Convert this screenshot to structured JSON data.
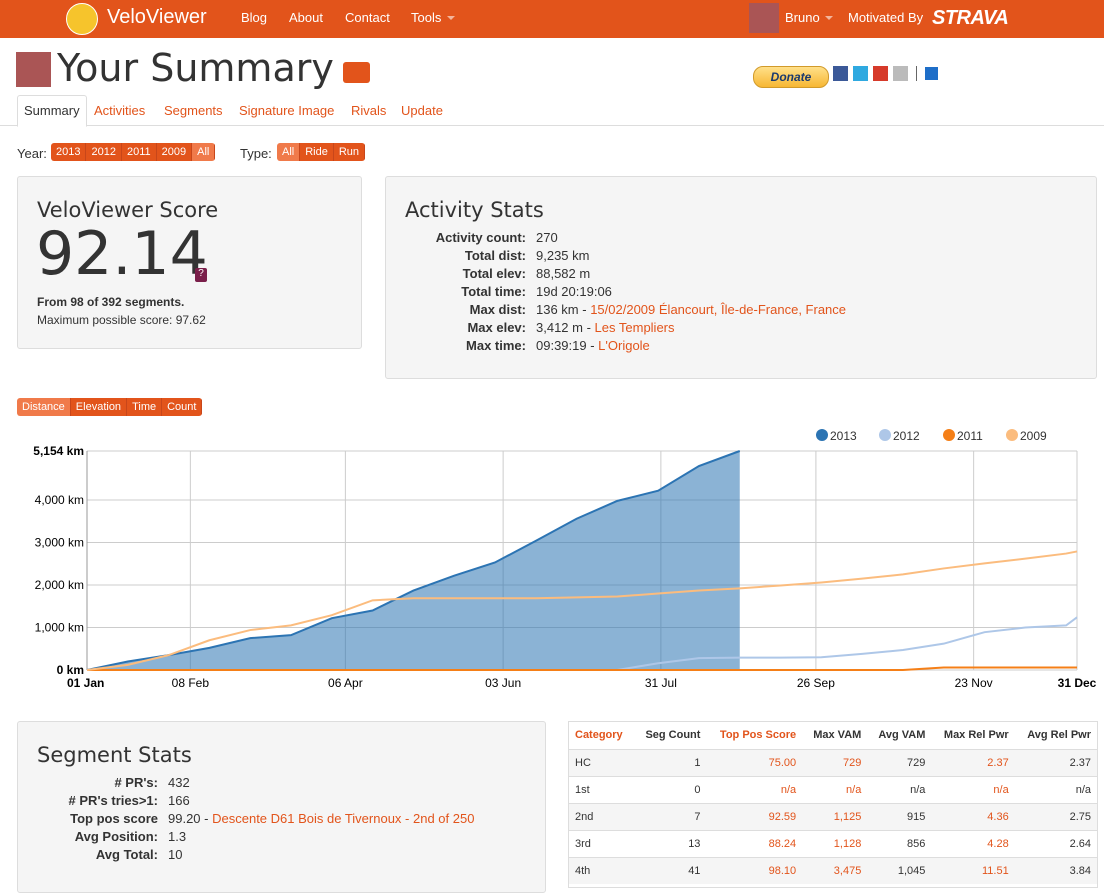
{
  "nav": {
    "logo": "VeloViewer",
    "links": [
      "Blog",
      "About",
      "Contact",
      "Tools"
    ],
    "user": "Bruno",
    "motivated": "Motivated By",
    "strava": "STRAVA"
  },
  "header": {
    "title": "Your Summary",
    "donate": "Donate"
  },
  "tabs": [
    "Summary",
    "Activities",
    "Segments",
    "Signature Image",
    "Rivals",
    "Update"
  ],
  "filters": {
    "year_label": "Year:",
    "years": [
      "2013",
      "2012",
      "2011",
      "2009",
      "All"
    ],
    "type_label": "Type:",
    "types": [
      "All",
      "Ride",
      "Run"
    ]
  },
  "score": {
    "title": "VeloViewer Score",
    "value": "92.14",
    "help": "?",
    "from": "From 98 of 392 segments.",
    "max": "Maximum possible score: 97.62"
  },
  "activity_stats": {
    "title": "Activity Stats",
    "rows": [
      {
        "label": "Activity count:",
        "value": "270"
      },
      {
        "label": "Total dist:",
        "value": "9,235 km"
      },
      {
        "label": "Total elev:",
        "value": "88,582 m"
      },
      {
        "label": "Total time:",
        "value": "19d 20:19:06"
      },
      {
        "label": "Max dist:",
        "value": "136 km -",
        "link": "15/02/2009 Élancourt, Île-de-France, France"
      },
      {
        "label": "Max elev:",
        "value": "3,412 m -",
        "link": "Les Templiers"
      },
      {
        "label": "Max time:",
        "value": "09:39:19 -",
        "link": "L'Origole"
      }
    ]
  },
  "chart_buttons": [
    "Distance",
    "Elevation",
    "Time",
    "Count"
  ],
  "chart_data": {
    "type": "line",
    "x": [
      0,
      15,
      30,
      45,
      60,
      75,
      90,
      105,
      120,
      135,
      150,
      165,
      180,
      195,
      210,
      225,
      240,
      255,
      270,
      285,
      300,
      315,
      330,
      345,
      360,
      364
    ],
    "xlim": [
      0,
      364
    ],
    "xticks": [
      {
        "value": 0,
        "label": "01 Jan"
      },
      {
        "value": 38,
        "label": "08 Feb"
      },
      {
        "value": 95,
        "label": "06 Apr"
      },
      {
        "value": 153,
        "label": "03 Jun"
      },
      {
        "value": 211,
        "label": "31 Jul"
      },
      {
        "value": 268,
        "label": "26 Sep"
      },
      {
        "value": 326,
        "label": "23 Nov"
      },
      {
        "value": 364,
        "label": "31 Dec"
      }
    ],
    "ylim": [
      0,
      5154
    ],
    "yticks": [
      {
        "value": 0,
        "label": "0 km"
      },
      {
        "value": 1000,
        "label": "1,000 km"
      },
      {
        "value": 2000,
        "label": "2,000 km"
      },
      {
        "value": 3000,
        "label": "3,000 km"
      },
      {
        "value": 4000,
        "label": "4,000 km"
      },
      {
        "value": 5154,
        "label": "5,154 km"
      }
    ],
    "grid": true,
    "legend": "top-right",
    "series": [
      {
        "name": "2013",
        "color": "#2c74b3",
        "area": true,
        "values": [
          0,
          200,
          350,
          520,
          750,
          820,
          1220,
          1400,
          1870,
          2220,
          2530,
          3040,
          3560,
          3980,
          4220,
          4800,
          5154,
          null,
          null,
          null,
          null,
          null,
          null,
          null,
          null,
          null
        ]
      },
      {
        "name": "2012",
        "color": "#aec7e8",
        "area": false,
        "values": [
          null,
          null,
          null,
          null,
          null,
          null,
          null,
          null,
          null,
          null,
          null,
          null,
          null,
          0,
          160,
          280,
          290,
          290,
          300,
          380,
          470,
          620,
          890,
          1000,
          1050,
          1240
        ]
      },
      {
        "name": "2011",
        "color": "#f57f17",
        "area": false,
        "values": [
          0,
          0,
          0,
          0,
          0,
          0,
          0,
          0,
          0,
          0,
          0,
          0,
          0,
          0,
          0,
          0,
          0,
          0,
          0,
          0,
          0,
          60,
          60,
          60,
          60,
          60
        ]
      },
      {
        "name": "2009",
        "color": "#fbbc7e",
        "area": false,
        "values": [
          0,
          120,
          350,
          700,
          940,
          1050,
          1290,
          1640,
          1690,
          1690,
          1690,
          1690,
          1710,
          1730,
          1800,
          1870,
          1920,
          1990,
          2060,
          2150,
          2250,
          2390,
          2510,
          2620,
          2740,
          2790
        ]
      }
    ]
  },
  "segment_stats": {
    "title": "Segment Stats",
    "rows": [
      {
        "label": "# PR's:",
        "value": "432"
      },
      {
        "label": "# PR's tries>1:",
        "value": "166"
      },
      {
        "label": "Top pos score",
        "value": "99.20 -",
        "link": "Descente D61 Bois de Tivernoux - 2nd of 250"
      },
      {
        "label": "Avg Position:",
        "value": "1.3"
      },
      {
        "label": "Avg Total:",
        "value": "10"
      }
    ]
  },
  "table": {
    "headers": [
      "Category",
      "Seg Count",
      "Top Pos Score",
      "Max VAM",
      "Avg VAM",
      "Max Rel Pwr",
      "Avg Rel Pwr"
    ],
    "rows": [
      [
        "HC",
        "1",
        "75.00",
        "729",
        "729",
        "2.37",
        "2.37"
      ],
      [
        "1st",
        "0",
        "n/a",
        "n/a",
        "n/a",
        "n/a",
        "n/a"
      ],
      [
        "2nd",
        "7",
        "92.59",
        "1,125",
        "915",
        "4.36",
        "2.75"
      ],
      [
        "3rd",
        "13",
        "88.24",
        "1,128",
        "856",
        "4.28",
        "2.64"
      ],
      [
        "4th",
        "41",
        "98.10",
        "3,475",
        "1,045",
        "11.51",
        "3.84"
      ]
    ]
  }
}
